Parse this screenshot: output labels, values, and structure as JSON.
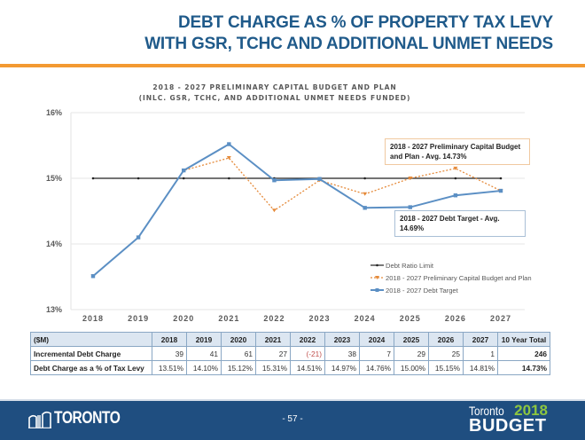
{
  "slide": {
    "title_line1": "DEBT CHARGE AS % OF PROPERTY TAX LEVY",
    "title_line2": "WITH GSR, TCHC AND ADDITIONAL UNMET NEEDS",
    "accent_color": "#f39a32",
    "title_color": "#1f5a8a"
  },
  "chart_data": {
    "type": "line",
    "title": "2018 - 2027 PRELIMINARY CAPITAL BUDGET AND PLAN",
    "subtitle": "(INLC. GSR, TCHC, AND ADDITIONAL UNMET NEEDS FUNDED)",
    "categories": [
      "2018",
      "2019",
      "2020",
      "2021",
      "2022",
      "2023",
      "2024",
      "2025",
      "2026",
      "2027"
    ],
    "ylim": [
      13,
      16
    ],
    "yticks": [
      13,
      14,
      15,
      16
    ],
    "ytick_labels": [
      "13%",
      "14%",
      "15%",
      "16%"
    ],
    "grid": true,
    "legend_position": "bottom-right",
    "series": [
      {
        "name": "Debt Ratio Limit",
        "color": "#222222",
        "style": "solid",
        "values": [
          15,
          15,
          15,
          15,
          15,
          15,
          15,
          15,
          15,
          15
        ]
      },
      {
        "name": "2018 - 2027 Preliminary Capital Budget and Plan",
        "color": "#e58a3a",
        "style": "dotted",
        "values": [
          13.51,
          14.1,
          15.12,
          15.31,
          14.51,
          14.97,
          14.76,
          15.0,
          15.15,
          14.81
        ]
      },
      {
        "name": "2018 - 2027 Debt Target",
        "color": "#5b8fc4",
        "style": "solid",
        "values": [
          13.51,
          14.1,
          15.12,
          15.52,
          14.97,
          14.99,
          14.55,
          14.56,
          14.74,
          14.81
        ]
      }
    ],
    "annotations": {
      "plan_avg": "2018 - 2027 Preliminary Capital Budget and Plan - Avg. 14.73%",
      "target_avg": "2018 - 2027 Debt Target - Avg. 14.69%"
    }
  },
  "table": {
    "header": [
      "($M)",
      "2018",
      "2019",
      "2020",
      "2021",
      "2022",
      "2023",
      "2024",
      "2025",
      "2026",
      "2027",
      "10 Year Total"
    ],
    "rows": [
      {
        "label": "Incremental Debt Charge",
        "values": [
          "39",
          "41",
          "61",
          "27",
          "(-21)",
          "38",
          "7",
          "29",
          "25",
          "1"
        ],
        "total": "246"
      },
      {
        "label": "Debt Charge as a % of Tax Levy",
        "values": [
          "13.51%",
          "14.10%",
          "15.12%",
          "15.31%",
          "14.51%",
          "14.97%",
          "14.76%",
          "15.00%",
          "15.15%",
          "14.81%"
        ],
        "total": "14.73%"
      }
    ]
  },
  "footer": {
    "logo_text": "TORONTO",
    "page": "- 57 -",
    "brand_city": "Toronto",
    "brand_year": "2018",
    "brand_word": "BUDGET"
  }
}
